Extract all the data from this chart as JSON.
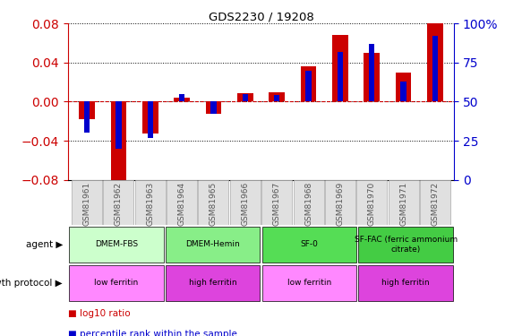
{
  "title": "GDS2230 / 19208",
  "samples": [
    "GSM81961",
    "GSM81962",
    "GSM81963",
    "GSM81964",
    "GSM81965",
    "GSM81966",
    "GSM81967",
    "GSM81968",
    "GSM81969",
    "GSM81970",
    "GSM81971",
    "GSM81972"
  ],
  "log10_ratio": [
    -0.018,
    -0.085,
    -0.033,
    0.004,
    -0.012,
    0.009,
    0.01,
    0.036,
    0.068,
    0.05,
    0.03,
    0.08
  ],
  "percentile": [
    30,
    20,
    27,
    55,
    42,
    55,
    54,
    70,
    82,
    87,
    63,
    92
  ],
  "ylim_left": [
    -0.08,
    0.08
  ],
  "ylim_right": [
    0,
    100
  ],
  "yticks_left": [
    -0.08,
    -0.04,
    0.0,
    0.04,
    0.08
  ],
  "yticks_right": [
    0,
    25,
    50,
    75,
    100
  ],
  "bar_color_red": "#cc0000",
  "bar_color_blue": "#0000cc",
  "agent_groups": [
    {
      "label": "DMEM-FBS",
      "start": 0,
      "end": 3,
      "color": "#ccffcc"
    },
    {
      "label": "DMEM-Hemin",
      "start": 3,
      "end": 6,
      "color": "#88ee88"
    },
    {
      "label": "SF-0",
      "start": 6,
      "end": 9,
      "color": "#55dd55"
    },
    {
      "label": "SF-FAC (ferric ammonium\ncitrate)",
      "start": 9,
      "end": 12,
      "color": "#44cc44"
    }
  ],
  "growth_groups": [
    {
      "label": "low ferritin",
      "start": 0,
      "end": 3,
      "color": "#ff88ff"
    },
    {
      "label": "high ferritin",
      "start": 3,
      "end": 6,
      "color": "#dd44dd"
    },
    {
      "label": "low ferritin",
      "start": 6,
      "end": 9,
      "color": "#ff88ff"
    },
    {
      "label": "high ferritin",
      "start": 9,
      "end": 12,
      "color": "#dd44dd"
    }
  ],
  "agent_label": "agent",
  "growth_label": "growth protocol",
  "legend_red": "log10 ratio",
  "legend_blue": "percentile rank within the sample",
  "tick_label_color": "#555555",
  "left_axis_color": "#cc0000",
  "right_axis_color": "#0000cc"
}
